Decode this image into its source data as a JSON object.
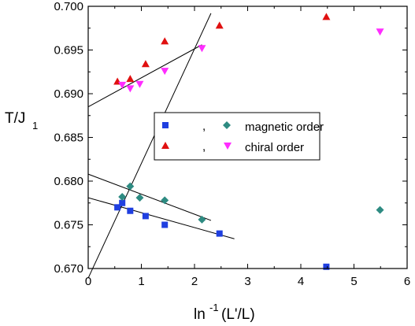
{
  "chart_data": {
    "type": "scatter",
    "xlim": [
      0,
      6
    ],
    "ylim": [
      0.67,
      0.7
    ],
    "xticks": [
      0,
      1,
      2,
      3,
      4,
      5,
      6
    ],
    "yticks": [
      0.67,
      0.675,
      0.68,
      0.685,
      0.69,
      0.695,
      0.7
    ],
    "xtick_labels": [
      "0",
      "1",
      "2",
      "3",
      "4",
      "5",
      "6"
    ],
    "ytick_labels": [
      "0.670",
      "0.675",
      "0.680",
      "0.685",
      "0.690",
      "0.695",
      "0.700"
    ],
    "xlabel": {
      "main": "ln",
      "sup": "-1",
      "rest": "(L'/L)"
    },
    "ylabel": {
      "main": "T/J",
      "sub": "1"
    },
    "grid": false,
    "legend": {
      "placement": "center-right",
      "entries": [
        {
          "text": "magnetic order",
          "separator": ","
        },
        {
          "text": "chiral order",
          "separator": ","
        }
      ]
    },
    "series": [
      {
        "marker": "square",
        "color": "#1f3fe0",
        "points": [
          [
            0.55,
            0.677
          ],
          [
            0.64,
            0.6775
          ],
          [
            0.79,
            0.6766
          ],
          [
            1.08,
            0.676
          ],
          [
            1.44,
            0.675
          ],
          [
            2.47,
            0.674
          ],
          [
            4.48,
            0.6702
          ]
        ]
      },
      {
        "marker": "diamond",
        "color": "#2e8b82",
        "points": [
          [
            0.64,
            0.6782
          ],
          [
            0.79,
            0.6794
          ],
          [
            0.97,
            0.6781
          ],
          [
            1.44,
            0.6778
          ],
          [
            2.14,
            0.6756
          ],
          [
            5.49,
            0.6767
          ]
        ]
      },
      {
        "marker": "triangle-up",
        "color": "#e01010",
        "points": [
          [
            0.55,
            0.6914
          ],
          [
            0.79,
            0.6917
          ],
          [
            1.08,
            0.6934
          ],
          [
            1.44,
            0.696
          ],
          [
            2.47,
            0.6978
          ],
          [
            4.48,
            0.6988
          ]
        ]
      },
      {
        "marker": "triangle-down",
        "color": "#ff2cff",
        "points": [
          [
            0.64,
            0.691
          ],
          [
            0.79,
            0.6906
          ],
          [
            0.97,
            0.6911
          ],
          [
            1.44,
            0.6926
          ],
          [
            2.14,
            0.6952
          ],
          [
            5.49,
            0.6971
          ]
        ]
      }
    ],
    "fit_lines": [
      {
        "from": [
          0,
          0.6689
        ],
        "to": [
          2.31,
          0.6992
        ]
      },
      {
        "from": [
          0,
          0.6885
        ],
        "to": [
          2.14,
          0.6956
        ]
      },
      {
        "from": [
          0,
          0.6808
        ],
        "to": [
          2.31,
          0.6755
        ]
      },
      {
        "from": [
          0,
          0.6781
        ],
        "to": [
          2.75,
          0.6734
        ]
      }
    ]
  }
}
